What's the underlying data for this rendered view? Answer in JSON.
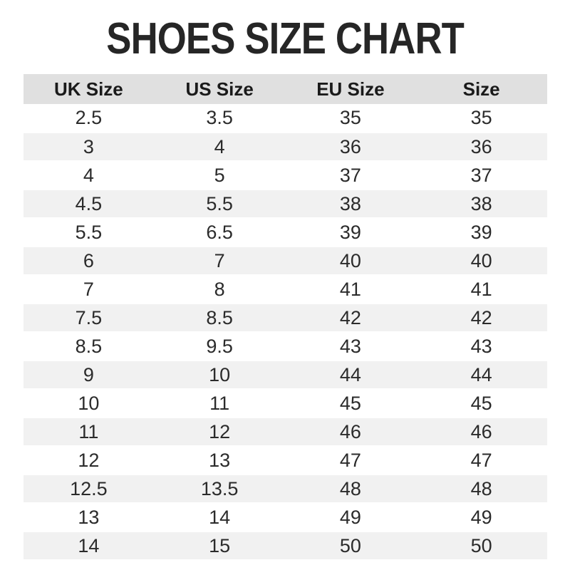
{
  "page": {
    "title": "SHOES SIZE CHART"
  },
  "colors": {
    "background": "#ffffff",
    "title_text": "#262626",
    "header_bg": "#e0e0e0",
    "header_text": "#1a1a1a",
    "row_bg": "#ffffff",
    "row_alt_bg": "#f1f1f1",
    "cell_text": "#2b2b2b"
  },
  "chart_data": {
    "type": "table",
    "title": "SHOES SIZE CHART",
    "columns": [
      "UK Size",
      "US Size",
      "EU Size",
      "Size"
    ],
    "rows": [
      [
        "2.5",
        "3.5",
        "35",
        "35"
      ],
      [
        "3",
        "4",
        "36",
        "36"
      ],
      [
        "4",
        "5",
        "37",
        "37"
      ],
      [
        "4.5",
        "5.5",
        "38",
        "38"
      ],
      [
        "5.5",
        "6.5",
        "39",
        "39"
      ],
      [
        "6",
        "7",
        "40",
        "40"
      ],
      [
        "7",
        "8",
        "41",
        "41"
      ],
      [
        "7.5",
        "8.5",
        "42",
        "42"
      ],
      [
        "8.5",
        "9.5",
        "43",
        "43"
      ],
      [
        "9",
        "10",
        "44",
        "44"
      ],
      [
        "10",
        "11",
        "45",
        "45"
      ],
      [
        "11",
        "12",
        "46",
        "46"
      ],
      [
        "12",
        "13",
        "47",
        "47"
      ],
      [
        "12.5",
        "13.5",
        "48",
        "48"
      ],
      [
        "13",
        "14",
        "49",
        "49"
      ],
      [
        "14",
        "15",
        "50",
        "50"
      ]
    ],
    "layout": {
      "striped": true,
      "stripe_pattern": "even-rows-gray",
      "header_position": "top",
      "cell_alignment": "center"
    }
  }
}
